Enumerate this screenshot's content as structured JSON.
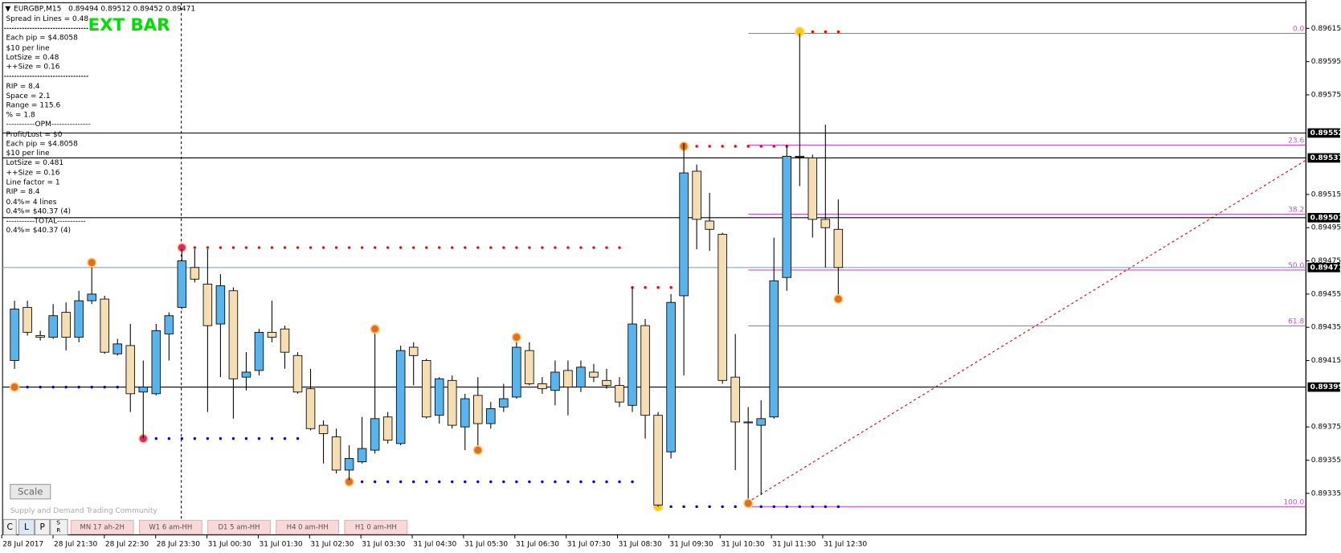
{
  "header": {
    "symbol": "EURGBP,M15",
    "ohlc": "0.89494 0.89512 0.89452 0.89471"
  },
  "banner": "EXT BAR",
  "info": [
    "Spread in Lines = 0.48",
    "Each pip = $4.8058",
    "$10 per line",
    "LotSize = 0.48",
    "++Size = 0.16",
    "RIP = 8.4",
    "Space = 2.1",
    "Range = 115.6",
    "% = 1.8",
    "-----------OPM---------------",
    "Profit/Lost = $0",
    "Each pip = $4.8058",
    "$10 per line",
    "LotSize = 0.481",
    "++Size = 0.16",
    "Line factor = 1",
    "RIP = 8.4",
    "0.4%= 4 lines",
    "0.4%= $40.37 (4)",
    "-----------TOTAL-----------",
    "0.4%= $40.37 (4)"
  ],
  "chart": {
    "type": "candlestick",
    "ylim": [
      0.8931,
      0.89632
    ],
    "yticks": [
      0.89615,
      0.89595,
      0.89575,
      0.89515,
      0.89495,
      0.89475,
      0.89455,
      0.89435,
      0.89415,
      0.89375,
      0.89355,
      0.89335
    ],
    "bull_color": "#5ab4ec",
    "bear_color": "#f5deb3",
    "candles": [
      [
        0.89415,
        0.89451,
        0.8941,
        0.89446
      ],
      [
        0.89447,
        0.89451,
        0.8943,
        0.89432
      ],
      [
        0.8943,
        0.89433,
        0.89427,
        0.89429
      ],
      [
        0.89429,
        0.89449,
        0.89428,
        0.89442
      ],
      [
        0.89444,
        0.8945,
        0.89421,
        0.89429
      ],
      [
        0.89429,
        0.89457,
        0.89426,
        0.89451
      ],
      [
        0.89451,
        0.89472,
        0.89449,
        0.89455
      ],
      [
        0.89452,
        0.89454,
        0.89419,
        0.8942
      ],
      [
        0.89419,
        0.89428,
        0.89418,
        0.89425
      ],
      [
        0.89424,
        0.89437,
        0.89384,
        0.89395
      ],
      [
        0.89396,
        0.89415,
        0.89368,
        0.89399
      ],
      [
        0.89395,
        0.89437,
        0.89394,
        0.89433
      ],
      [
        0.89431,
        0.89444,
        0.89415,
        0.89442
      ],
      [
        0.89447,
        0.89482,
        0.89446,
        0.89475
      ],
      [
        0.89471,
        0.89482,
        0.89462,
        0.89464
      ],
      [
        0.89461,
        0.89482,
        0.89384,
        0.89436
      ],
      [
        0.89437,
        0.89467,
        0.89405,
        0.8946
      ],
      [
        0.89457,
        0.89459,
        0.8938,
        0.89404
      ],
      [
        0.89405,
        0.8942,
        0.89397,
        0.89408
      ],
      [
        0.89409,
        0.89434,
        0.89406,
        0.89432
      ],
      [
        0.89432,
        0.89451,
        0.89426,
        0.89429
      ],
      [
        0.89434,
        0.89436,
        0.8941,
        0.8942
      ],
      [
        0.89418,
        0.8942,
        0.89395,
        0.89396
      ],
      [
        0.89398,
        0.8941,
        0.89373,
        0.89374
      ],
      [
        0.89376,
        0.89379,
        0.89353,
        0.89371
      ],
      [
        0.89369,
        0.89374,
        0.89347,
        0.89349
      ],
      [
        0.89349,
        0.89364,
        0.89343,
        0.89356
      ],
      [
        0.89354,
        0.89381,
        0.89353,
        0.89362
      ],
      [
        0.89361,
        0.89435,
        0.89359,
        0.8938
      ],
      [
        0.89381,
        0.89384,
        0.89365,
        0.89367
      ],
      [
        0.89365,
        0.89424,
        0.89364,
        0.89421
      ],
      [
        0.89423,
        0.89426,
        0.894,
        0.89418
      ],
      [
        0.89415,
        0.89416,
        0.8938,
        0.89381
      ],
      [
        0.89382,
        0.89405,
        0.89377,
        0.89404
      ],
      [
        0.89403,
        0.89406,
        0.89374,
        0.89376
      ],
      [
        0.89375,
        0.89395,
        0.89361,
        0.89392
      ],
      [
        0.89394,
        0.89405,
        0.89361,
        0.89377
      ],
      [
        0.89377,
        0.8939,
        0.89374,
        0.89386
      ],
      [
        0.89387,
        0.89401,
        0.89384,
        0.89392
      ],
      [
        0.89393,
        0.89429,
        0.89392,
        0.89423
      ],
      [
        0.89421,
        0.89426,
        0.894,
        0.89401
      ],
      [
        0.89401,
        0.89405,
        0.89395,
        0.89398
      ],
      [
        0.89397,
        0.89415,
        0.89388,
        0.89408
      ],
      [
        0.89409,
        0.89415,
        0.89382,
        0.89399
      ],
      [
        0.89399,
        0.89415,
        0.89396,
        0.89411
      ],
      [
        0.89408,
        0.89413,
        0.89402,
        0.89405
      ],
      [
        0.89403,
        0.8941,
        0.89398,
        0.894
      ],
      [
        0.894,
        0.89405,
        0.89387,
        0.8939
      ],
      [
        0.89388,
        0.89459,
        0.89384,
        0.89437
      ],
      [
        0.89436,
        0.8944,
        0.89368,
        0.89382
      ],
      [
        0.89382,
        0.89384,
        0.89327,
        0.89328
      ],
      [
        0.8936,
        0.89455,
        0.89356,
        0.8945
      ],
      [
        0.89454,
        0.89546,
        0.89406,
        0.89528
      ],
      [
        0.89529,
        0.89533,
        0.89482,
        0.895
      ],
      [
        0.89499,
        0.89516,
        0.89481,
        0.89494
      ],
      [
        0.89491,
        0.89492,
        0.89401,
        0.89403
      ],
      [
        0.89405,
        0.89431,
        0.89349,
        0.89378
      ],
      [
        0.89378,
        0.89387,
        0.89329,
        0.89378
      ],
      [
        0.89376,
        0.89391,
        0.89334,
        0.8938
      ],
      [
        0.89381,
        0.89489,
        0.8938,
        0.89463
      ],
      [
        0.89465,
        0.89545,
        0.89457,
        0.89538
      ],
      [
        0.89538,
        0.89612,
        0.8952,
        0.89538
      ],
      [
        0.89537,
        0.89539,
        0.89489,
        0.895
      ],
      [
        0.895,
        0.89557,
        0.89471,
        0.89495
      ],
      [
        0.89494,
        0.89512,
        0.89452,
        0.89471
      ]
    ],
    "levels": [
      0.89552,
      0.89537,
      0.89501,
      0.89399
    ],
    "current": 0.89471,
    "fib": {
      "high": 0.89612,
      "low": 0.89327,
      "color": "#c050d0",
      "levels": [
        {
          "value": 0,
          "label": "0.0"
        },
        {
          "value": 23.6,
          "label": "23.6"
        },
        {
          "value": 38.2,
          "label": "38.2"
        },
        {
          "value": 50,
          "label": "50.0"
        },
        {
          "value": 61.8,
          "label": "61.8"
        },
        {
          "value": 100,
          "label": "100.0"
        }
      ]
    },
    "zones": [
      {
        "price": 0.89483,
        "color": "#ff0000"
      },
      {
        "price": 0.89544,
        "color": "#ff0000"
      },
      {
        "price": 0.89613,
        "color": "#ff0000"
      },
      {
        "price": 0.89459,
        "color": "#ff0000"
      },
      {
        "price": 0.89399,
        "color": "#0000ff"
      },
      {
        "price": 0.89368,
        "color": "#0000ff"
      },
      {
        "price": 0.89342,
        "color": "#0000ff"
      },
      {
        "price": 0.89327,
        "color": "#0000ff"
      }
    ],
    "markers": [
      0.89474,
      0.89434,
      0.89361,
      0.89429,
      0.89329,
      0.89452
    ],
    "xlabels": [
      "28 Jul 2017",
      "28 Jul 21:30",
      "28 Jul 22:30",
      "28 Jul 23:30",
      "31 Jul 00:30",
      "31 Jul 01:30",
      "31 Jul 02:30",
      "31 Jul 03:30",
      "31 Jul 04:30",
      "31 Jul 05:30",
      "31 Jul 06:30",
      "31 Jul 07:30",
      "31 Jul 08:30",
      "31 Jul 09:30",
      "31 Jul 10:30",
      "31 Jul 11:30",
      "31 Jul 12:30"
    ]
  },
  "footer": {
    "scale": "Scale",
    "community": "Supply and Demand Trading Community",
    "buttons": [
      "C",
      "L",
      "P"
    ],
    "sr": [
      "S",
      "R"
    ],
    "tabs": [
      "MN 17 ah-2H",
      "W1 6 am-HH",
      "D1 5 am-HH",
      "H4 0 am-HH",
      "H1 0 am-HH"
    ]
  }
}
